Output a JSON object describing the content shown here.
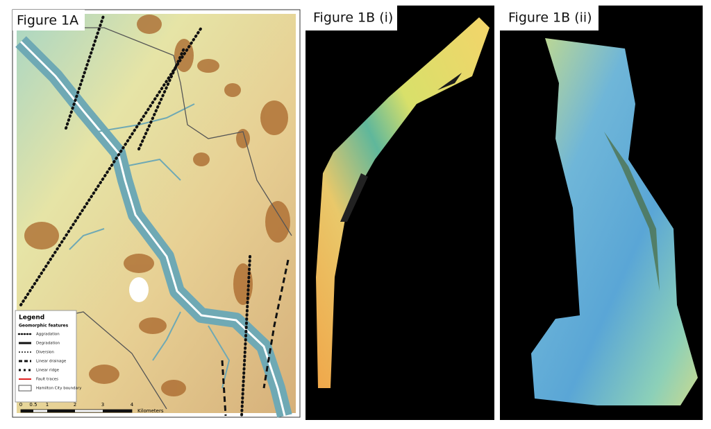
{
  "panels": [
    {
      "label": "Figure 1A"
    },
    {
      "label": "Figure 1B (i)"
    },
    {
      "label": "Figure 1B (ii)"
    }
  ],
  "legend": {
    "title": "Legend",
    "subtitle": "Geomorphic features",
    "items": [
      "Aggradation",
      "Degradation",
      "Diversion",
      "Linear drainage",
      "Linear ridge",
      "Fault traces",
      "Hamilton City boundary"
    ]
  },
  "scale_bar": {
    "labels": [
      "0",
      "0.5",
      "1",
      "2",
      "3",
      "4"
    ],
    "unit": "Kilometers"
  }
}
